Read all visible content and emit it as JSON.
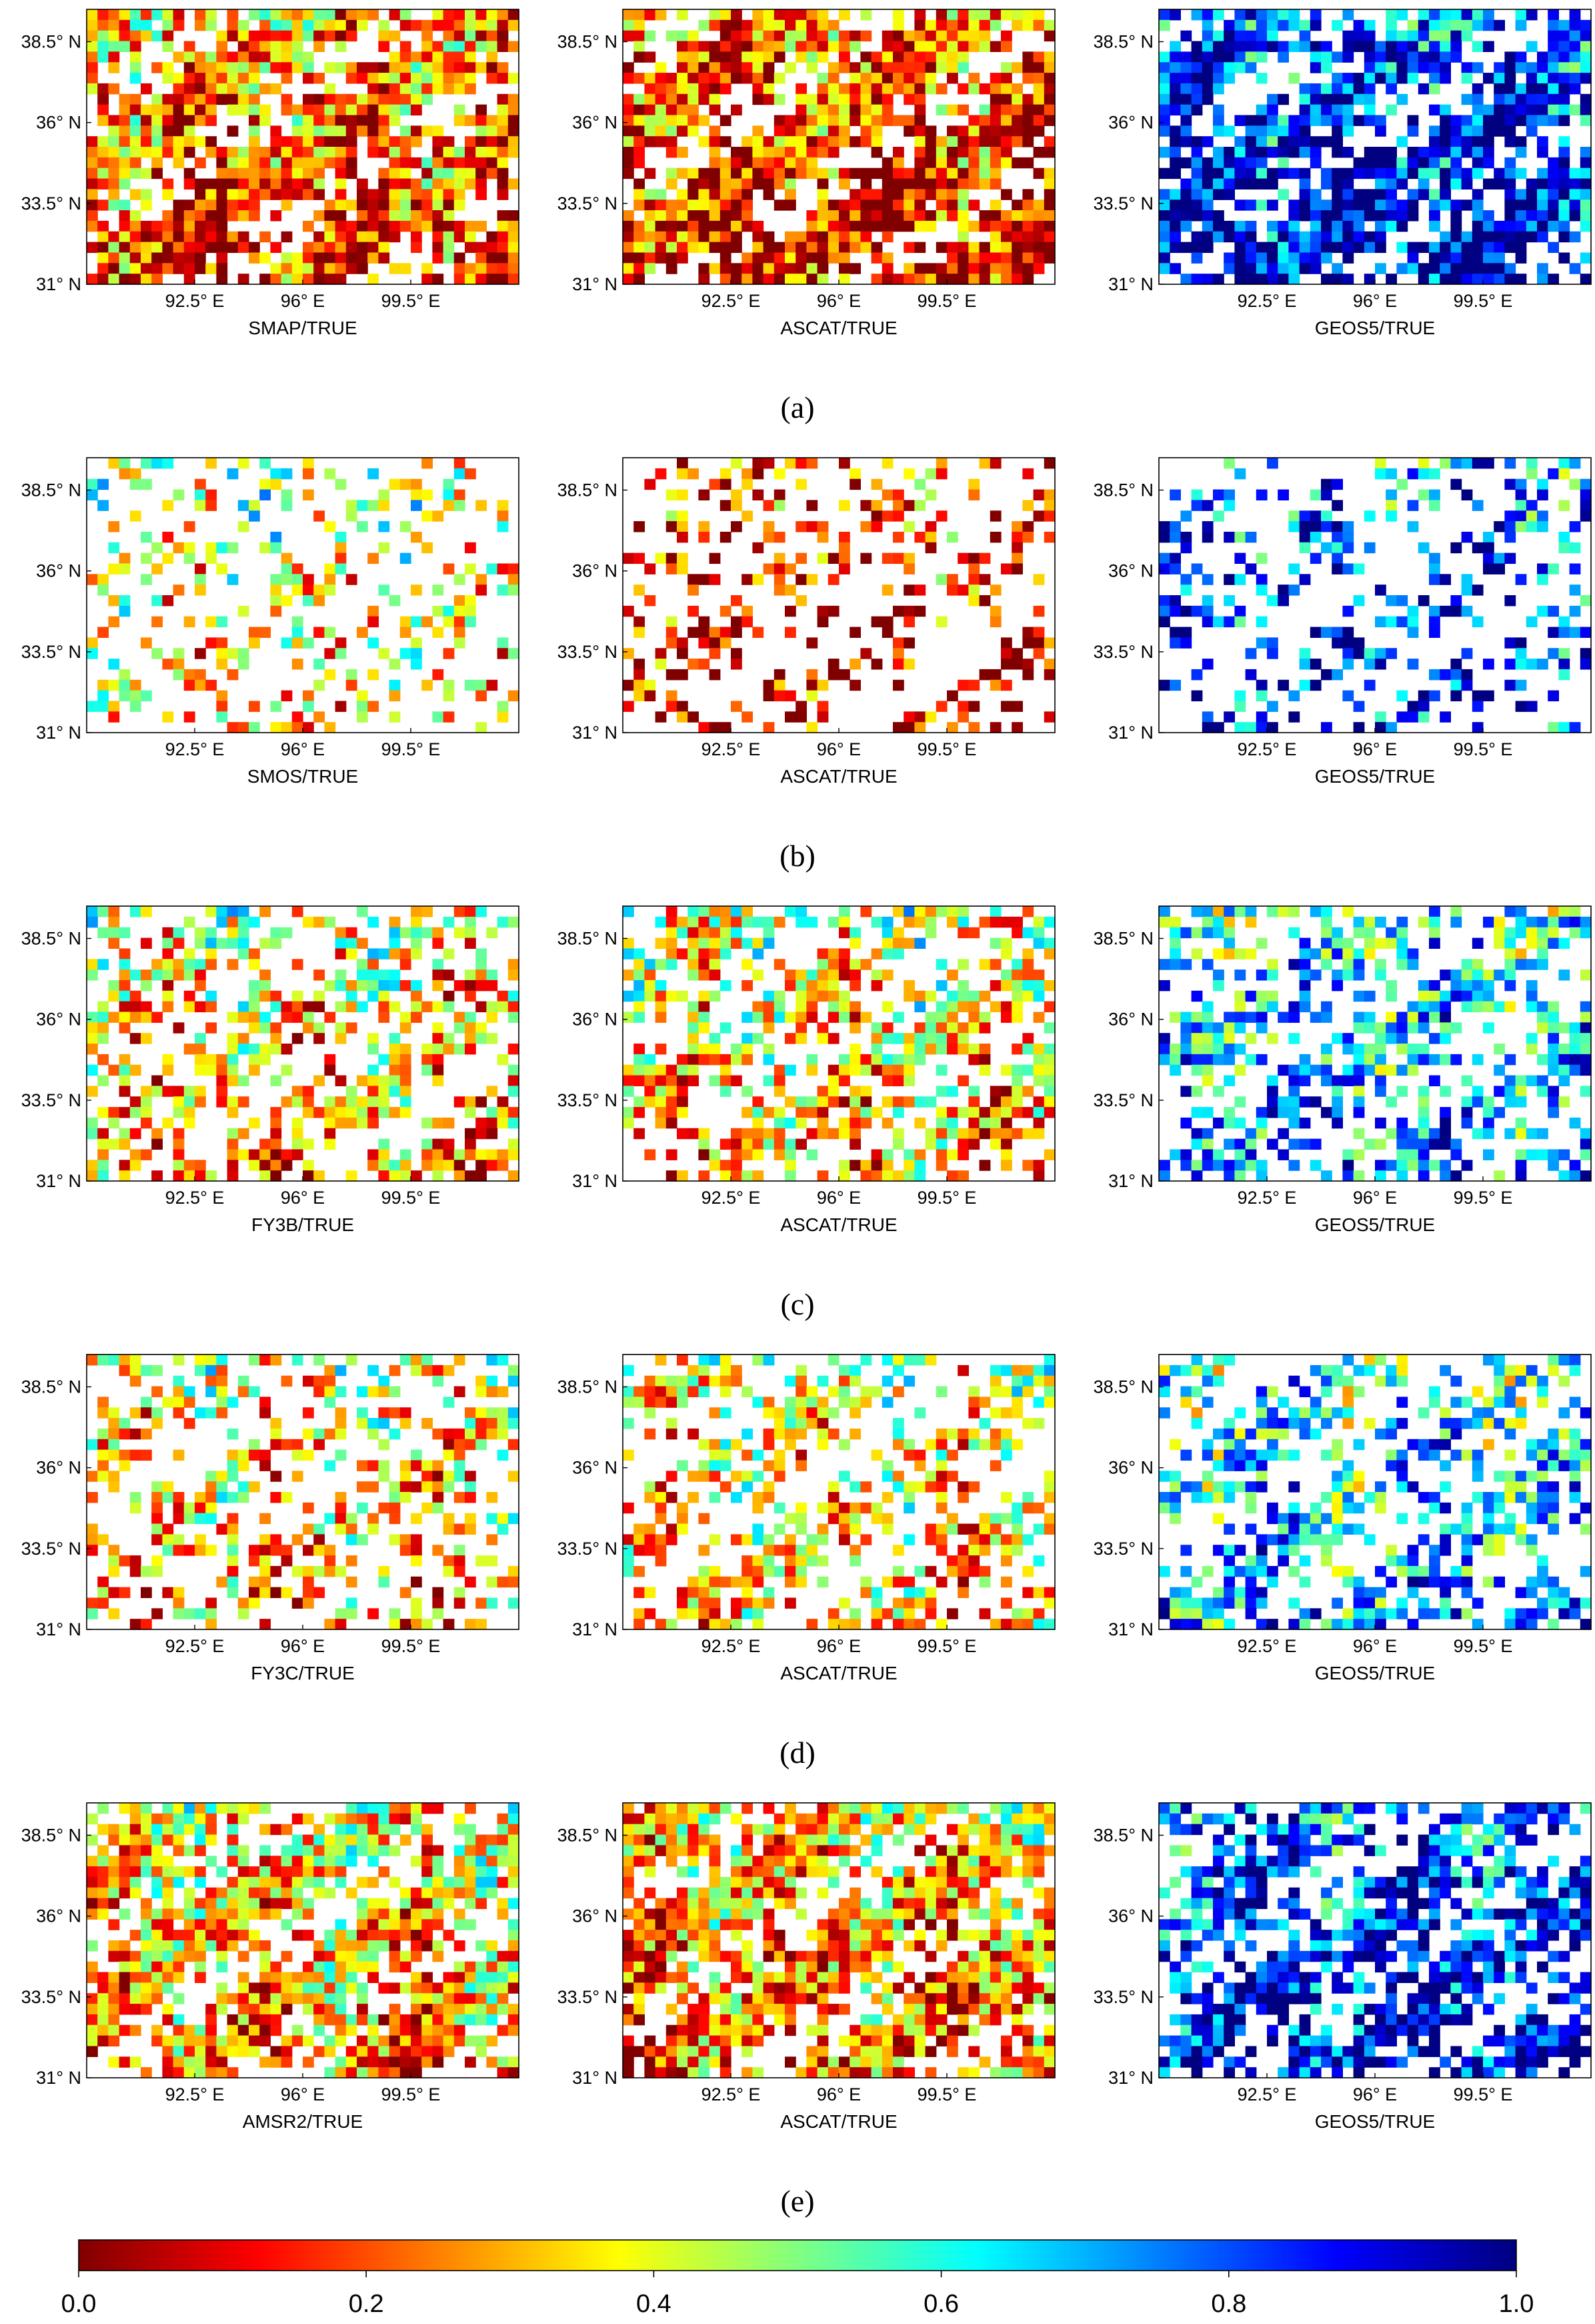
{
  "figure": {
    "colorbar": {
      "colormap": "jet-reversed (0 = dark red, 1 = dark blue)",
      "range": [
        0.0,
        1.0
      ],
      "ticks": [
        "0.0",
        "0.2",
        "0.4",
        "0.6",
        "0.8",
        "1.0"
      ],
      "stops": [
        "#800000",
        "#ff0000",
        "#ff8000",
        "#ffff00",
        "#80ff80",
        "#00ffff",
        "#0080ff",
        "#0000ff",
        "#000080"
      ]
    },
    "axis_ticks": {
      "y": [
        "38.5° N",
        "36° N",
        "33.5° N",
        "31° N"
      ],
      "x": [
        "92.5° E",
        "96° E",
        "99.5° E"
      ]
    },
    "rows": [
      {
        "label": "(a)",
        "letter": "a",
        "panels": [
          "SMAP/TRUE",
          "ASCAT/TRUE",
          "GEOS5/TRUE"
        ],
        "density": [
          0.78,
          0.8,
          0.72
        ],
        "tendency": [
          0.3,
          0.25,
          0.78
        ]
      },
      {
        "label": "(b)",
        "letter": "b",
        "panels": [
          "SMOS/TRUE",
          "ASCAT/TRUE",
          "GEOS5/TRUE"
        ],
        "density": [
          0.28,
          0.3,
          0.3
        ],
        "tendency": [
          0.45,
          0.2,
          0.72
        ]
      },
      {
        "label": "(c)",
        "letter": "c",
        "panels": [
          "FY3B/TRUE",
          "ASCAT/TRUE",
          "GEOS5/TRUE"
        ],
        "density": [
          0.5,
          0.52,
          0.5
        ],
        "tendency": [
          0.4,
          0.42,
          0.6
        ]
      },
      {
        "label": "(d)",
        "letter": "d",
        "panels": [
          "FY3C/TRUE",
          "ASCAT/TRUE",
          "GEOS5/TRUE"
        ],
        "density": [
          0.42,
          0.45,
          0.45
        ],
        "tendency": [
          0.4,
          0.42,
          0.58
        ]
      },
      {
        "label": "(e)",
        "letter": "e",
        "panels": [
          "AMSR2/TRUE",
          "ASCAT/TRUE",
          "GEOS5/TRUE"
        ],
        "density": [
          0.72,
          0.75,
          0.62
        ],
        "tendency": [
          0.38,
          0.35,
          0.78
        ]
      }
    ]
  },
  "chart_data": {
    "type": "heatmap",
    "title": "",
    "description_of_values": "ratio of each product to TRUE soil moisture on a gridded map",
    "x_range_deg_E": [
      89,
      103
    ],
    "y_range_deg_N": [
      31,
      39.5
    ],
    "grid_cols": 40,
    "grid_rows": 26,
    "color_range": [
      0.0,
      1.0
    ],
    "panels": [
      "SMAP/TRUE",
      "ASCAT/TRUE",
      "GEOS5/TRUE",
      "SMOS/TRUE",
      "ASCAT/TRUE",
      "GEOS5/TRUE",
      "FY3B/TRUE",
      "ASCAT/TRUE",
      "GEOS5/TRUE",
      "FY3C/TRUE",
      "ASCAT/TRUE",
      "GEOS5/TRUE",
      "AMSR2/TRUE",
      "ASCAT/TRUE",
      "GEOS5/TRUE"
    ],
    "xticks": [
      "92.5° E",
      "96° E",
      "99.5° E"
    ],
    "yticks": [
      "38.5° N",
      "36° N",
      "33.5° N",
      "31° N"
    ]
  }
}
